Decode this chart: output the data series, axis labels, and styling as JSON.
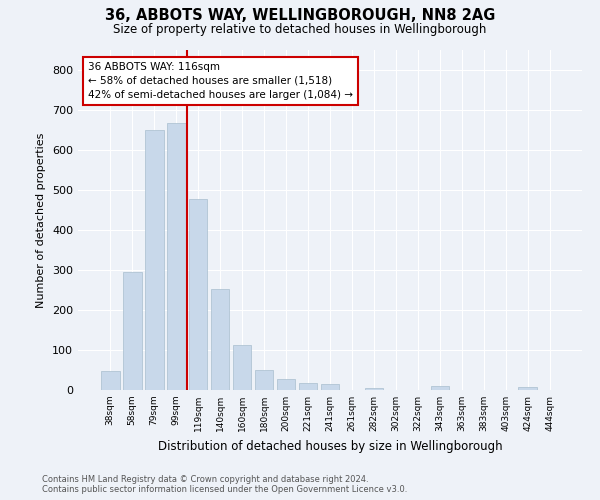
{
  "title": "36, ABBOTS WAY, WELLINGBOROUGH, NN8 2AG",
  "subtitle": "Size of property relative to detached houses in Wellingborough",
  "xlabel": "Distribution of detached houses by size in Wellingborough",
  "ylabel": "Number of detached properties",
  "bar_labels": [
    "38sqm",
    "58sqm",
    "79sqm",
    "99sqm",
    "119sqm",
    "140sqm",
    "160sqm",
    "180sqm",
    "200sqm",
    "221sqm",
    "241sqm",
    "261sqm",
    "282sqm",
    "302sqm",
    "322sqm",
    "343sqm",
    "363sqm",
    "383sqm",
    "403sqm",
    "424sqm",
    "444sqm"
  ],
  "bar_values": [
    47,
    295,
    651,
    667,
    478,
    253,
    113,
    50,
    27,
    18,
    15,
    1,
    5,
    0,
    0,
    9,
    0,
    0,
    0,
    8,
    0
  ],
  "bar_color": "#c8d8ea",
  "bar_edge_color": "#a8bece",
  "vline_x_idx": 4,
  "vline_color": "#cc0000",
  "annotation_text": "36 ABBOTS WAY: 116sqm\n← 58% of detached houses are smaller (1,518)\n42% of semi-detached houses are larger (1,084) →",
  "annotation_box_color": "#ffffff",
  "annotation_box_edge": "#cc0000",
  "ylim": [
    0,
    850
  ],
  "yticks": [
    0,
    100,
    200,
    300,
    400,
    500,
    600,
    700,
    800
  ],
  "background_color": "#eef2f8",
  "grid_color": "#ffffff",
  "footer_line1": "Contains HM Land Registry data © Crown copyright and database right 2024.",
  "footer_line2": "Contains public sector information licensed under the Open Government Licence v3.0."
}
